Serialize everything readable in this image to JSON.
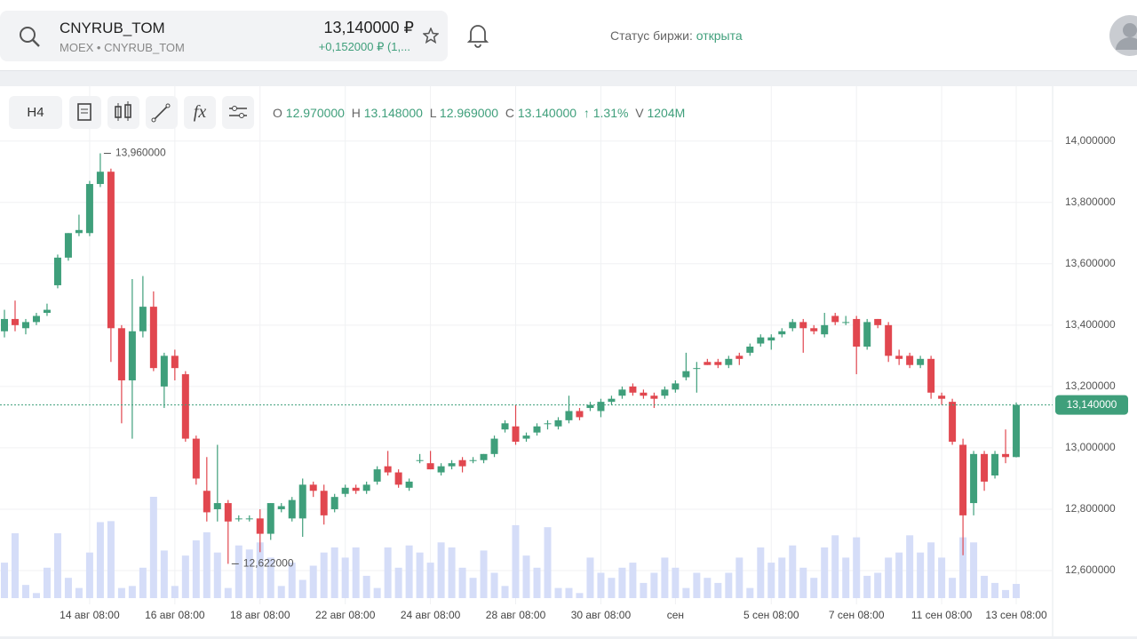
{
  "header": {
    "ticker": "CNYRUB_TOM",
    "exchange": "MOEX",
    "instrument": "CNYRUB_TOM",
    "price": "13,140000 ₽",
    "change": "+0,152000 ₽ (1,...",
    "status_label": "Статус биржи:",
    "status_value": "открыта"
  },
  "toolbar": {
    "interval": "H4",
    "o_label": "O",
    "o": "12.970000",
    "h_label": "H",
    "h": "13.148000",
    "l_label": "L",
    "l": "12.969000",
    "c_label": "C",
    "c": "13.140000",
    "pct": "↑ 1.31%",
    "v_label": "V",
    "v": "1204M"
  },
  "chart_data": {
    "type": "candlestick",
    "open": [
      13.38,
      13.42,
      13.39,
      13.41,
      13.44,
      13.53,
      13.62,
      13.7,
      13.7,
      13.86,
      13.9,
      13.39,
      13.22,
      13.38,
      13.46,
      13.2,
      13.3,
      13.24,
      13.03,
      12.86,
      12.8,
      12.82,
      12.77,
      12.77,
      12.77,
      12.72,
      12.8,
      12.77,
      12.77,
      12.88,
      12.86,
      12.8,
      12.85,
      12.87,
      12.86,
      12.89,
      12.94,
      12.92,
      12.87,
      12.96,
      12.95,
      12.92,
      12.94,
      12.96,
      12.96,
      12.96,
      12.98,
      13.06,
      13.07,
      13.03,
      13.05,
      13.08,
      13.07,
      13.09,
      13.12,
      13.13,
      13.12,
      13.15,
      13.17,
      13.2,
      13.18,
      13.17,
      13.17,
      13.19,
      13.23,
      13.26,
      13.28,
      13.28,
      13.27,
      13.3,
      13.31,
      13.34,
      13.35,
      13.37,
      13.39,
      13.41,
      13.39,
      13.37,
      13.43,
      13.41,
      13.42,
      13.33,
      13.42,
      13.4,
      13.3,
      13.3,
      13.27,
      13.29,
      13.17,
      13.15,
      13.01,
      12.82,
      12.98,
      12.91,
      12.98,
      12.97
    ],
    "high": [
      13.45,
      13.48,
      13.42,
      13.44,
      13.47,
      13.63,
      13.7,
      13.76,
      13.87,
      13.96,
      13.91,
      13.4,
      13.55,
      13.56,
      13.51,
      13.31,
      13.32,
      13.25,
      13.04,
      12.97,
      13.01,
      12.83,
      12.78,
      12.78,
      12.8,
      12.82,
      12.82,
      12.84,
      12.9,
      12.89,
      12.88,
      12.85,
      12.88,
      12.88,
      12.89,
      12.94,
      12.99,
      12.93,
      12.9,
      12.98,
      12.99,
      12.95,
      12.96,
      12.97,
      12.97,
      12.98,
      13.04,
      13.09,
      13.14,
      13.05,
      13.08,
      13.09,
      13.1,
      13.17,
      13.13,
      13.15,
      13.16,
      13.17,
      13.2,
      13.21,
      13.19,
      13.18,
      13.2,
      13.22,
      13.31,
      13.28,
      13.29,
      13.29,
      13.3,
      13.31,
      13.34,
      13.37,
      13.37,
      13.39,
      13.42,
      13.42,
      13.4,
      13.44,
      13.44,
      13.43,
      13.43,
      13.42,
      13.42,
      13.41,
      13.32,
      13.31,
      13.3,
      13.3,
      13.18,
      13.16,
      13.03,
      12.99,
      12.99,
      12.99,
      13.06,
      13.148
    ],
    "low": [
      13.36,
      13.38,
      13.37,
      13.4,
      13.43,
      13.52,
      13.61,
      13.69,
      13.69,
      13.85,
      13.28,
      13.08,
      13.03,
      13.36,
      13.25,
      13.13,
      13.22,
      13.02,
      12.88,
      12.76,
      12.76,
      12.622,
      12.76,
      12.76,
      12.66,
      12.7,
      12.79,
      12.76,
      12.71,
      12.84,
      12.75,
      12.79,
      12.84,
      12.85,
      12.85,
      12.88,
      12.91,
      12.87,
      12.86,
      12.95,
      12.93,
      12.91,
      12.93,
      12.92,
      12.95,
      12.95,
      12.97,
      13.05,
      13.01,
      13.02,
      13.04,
      13.06,
      13.06,
      13.08,
      13.09,
      13.12,
      13.1,
      13.14,
      13.16,
      13.17,
      13.16,
      13.13,
      13.16,
      13.18,
      13.22,
      13.18,
      13.27,
      13.26,
      13.26,
      13.27,
      13.3,
      13.33,
      13.32,
      13.36,
      13.38,
      13.31,
      13.37,
      13.36,
      13.4,
      13.4,
      13.24,
      13.32,
      13.39,
      13.28,
      13.27,
      13.26,
      13.26,
      13.16,
      13.14,
      13.01,
      12.65,
      12.78,
      12.86,
      12.9,
      12.95,
      12.969
    ],
    "close": [
      13.42,
      13.4,
      13.41,
      13.43,
      13.45,
      13.62,
      13.7,
      13.71,
      13.86,
      13.9,
      13.39,
      13.22,
      13.38,
      13.46,
      13.26,
      13.3,
      13.26,
      13.03,
      12.9,
      12.79,
      12.82,
      12.76,
      12.77,
      12.77,
      12.72,
      12.82,
      12.81,
      12.83,
      12.88,
      12.86,
      12.78,
      12.84,
      12.87,
      12.86,
      12.88,
      12.93,
      12.92,
      12.88,
      12.89,
      12.96,
      12.93,
      12.94,
      12.95,
      12.94,
      12.96,
      12.98,
      13.03,
      13.08,
      13.02,
      13.04,
      13.07,
      13.08,
      13.09,
      13.12,
      13.1,
      13.14,
      13.15,
      13.16,
      13.19,
      13.18,
      13.17,
      13.16,
      13.19,
      13.21,
      13.25,
      13.26,
      13.27,
      13.27,
      13.29,
      13.29,
      13.33,
      13.36,
      13.36,
      13.38,
      13.41,
      13.39,
      13.38,
      13.4,
      13.41,
      13.41,
      13.33,
      13.41,
      13.4,
      13.3,
      13.29,
      13.27,
      13.29,
      13.18,
      13.16,
      13.02,
      12.78,
      12.98,
      12.89,
      12.98,
      12.97,
      13.14
    ],
    "volume": [
      35,
      64,
      13,
      5,
      30,
      64,
      20,
      10,
      45,
      75,
      76,
      10,
      12,
      30,
      100,
      47,
      12,
      42,
      57,
      65,
      45,
      10,
      52,
      48,
      55,
      40,
      12,
      35,
      18,
      32,
      45,
      50,
      40,
      50,
      22,
      10,
      50,
      30,
      52,
      45,
      35,
      55,
      50,
      30,
      20,
      47,
      25,
      12,
      72,
      42,
      30,
      70,
      10,
      10,
      5,
      40,
      25,
      20,
      30,
      35,
      15,
      25,
      40,
      30,
      10,
      25,
      20,
      15,
      25,
      40,
      10,
      50,
      35,
      40,
      52,
      30,
      20,
      50,
      62,
      40,
      60,
      22,
      25,
      40,
      45,
      62,
      45,
      55,
      40,
      20,
      60,
      55,
      22,
      15,
      8,
      14
    ],
    "vlim": [
      0,
      100
    ],
    "up_color": "#3f9f7b",
    "down_color": "#e1474f",
    "volume_color": "#d5ddf8",
    "ylim": [
      12.49,
      14.17
    ],
    "yticks": [
      {
        "value": 12.6,
        "label": "12,600000"
      },
      {
        "value": 12.8,
        "label": "12,800000"
      },
      {
        "value": 13.0,
        "label": "13,000000"
      },
      {
        "value": 13.2,
        "label": "13,200000"
      },
      {
        "value": 13.4,
        "label": "13,400000"
      },
      {
        "value": 13.6,
        "label": "13,600000"
      },
      {
        "value": 13.8,
        "label": "13,800000"
      },
      {
        "value": 14.0,
        "label": "14,000000"
      }
    ],
    "xticks": [
      {
        "value": 8,
        "label": "14 авг 08:00"
      },
      {
        "value": 16,
        "label": "16 авг 08:00"
      },
      {
        "value": 24,
        "label": "18 авг 08:00"
      },
      {
        "value": 32,
        "label": "22 авг 08:00"
      },
      {
        "value": 40,
        "label": "24 авг 08:00"
      },
      {
        "value": 48,
        "label": "28 авг 08:00"
      },
      {
        "value": 56,
        "label": "30 авг 08:00"
      },
      {
        "value": 63,
        "label": "сен"
      },
      {
        "value": 72,
        "label": "5 сен 08:00"
      },
      {
        "value": 80,
        "label": "7 сен 08:00"
      },
      {
        "value": 88,
        "label": "11 сен 08:00"
      },
      {
        "value": 95,
        "label": "13 сен 08:00"
      }
    ],
    "grid": true,
    "last_price": {
      "value": 13.14,
      "label": "13,140000"
    },
    "high_marker": {
      "value": 13.96,
      "label": "13,960000"
    },
    "low_marker": {
      "value": 12.622,
      "label": "12,622000"
    }
  }
}
